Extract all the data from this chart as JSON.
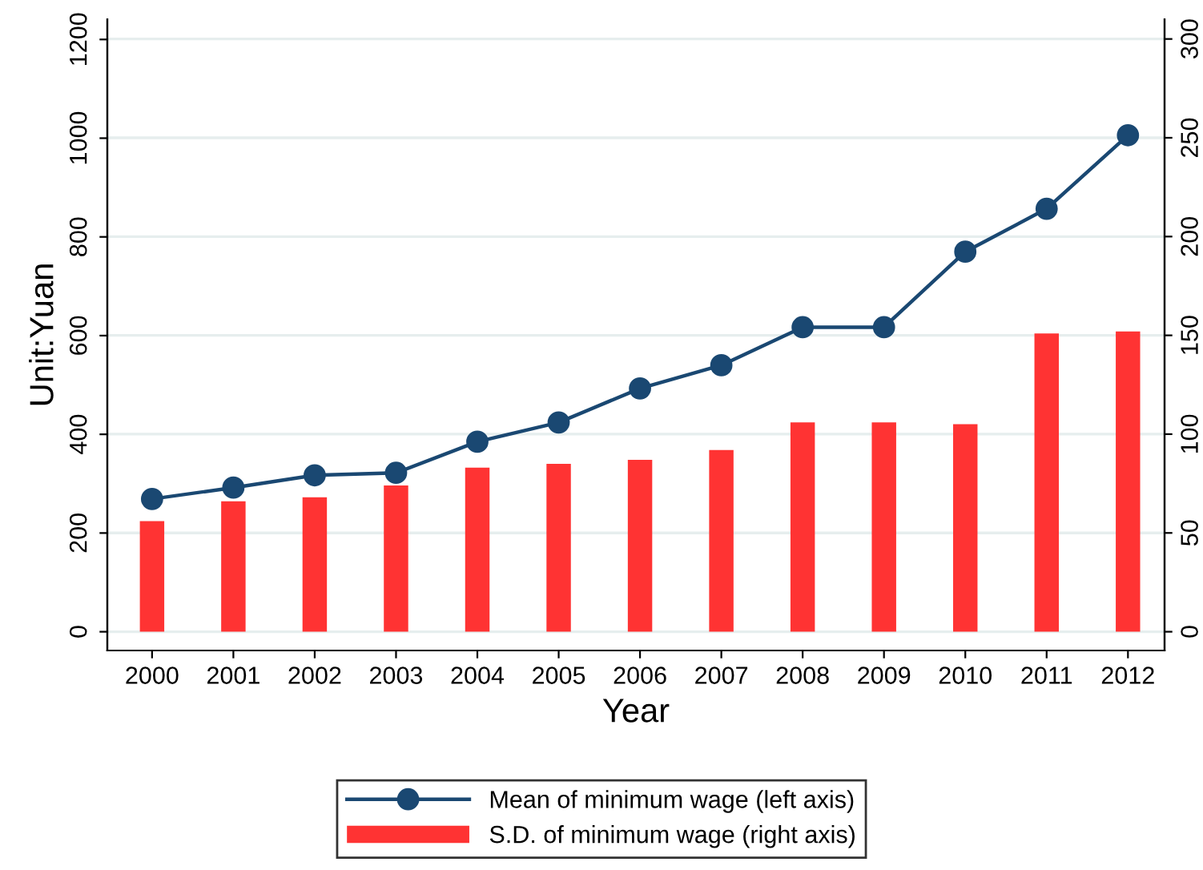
{
  "chart_data": {
    "type": "line",
    "xlabel": "Year",
    "ylabel": "Unit:Yuan",
    "categories": [
      "2000",
      "2001",
      "2002",
      "2003",
      "2004",
      "2005",
      "2006",
      "2007",
      "2008",
      "2009",
      "2010",
      "2011",
      "2012"
    ],
    "series": [
      {
        "name": "Mean of minimum wage (left axis)",
        "color": "#1a4872",
        "marker": "circle",
        "values": [
          269,
          292,
          317,
          322,
          385,
          424,
          493,
          540,
          617,
          617,
          770,
          857,
          1006
        ]
      },
      {
        "name": "S.D. of minimum wage (right axis)",
        "type": "bar",
        "axis": "y2",
        "color": "#ff3333",
        "values": [
          56,
          66,
          68,
          74,
          83,
          85,
          87,
          92,
          106,
          106,
          105,
          151,
          152
        ]
      }
    ],
    "ylim": [
      -38,
      1241
    ],
    "yticks": [
      0,
      200,
      400,
      600,
      800,
      1000,
      1200
    ],
    "y2lim": [
      -9.5,
      310
    ],
    "y2ticks": [
      0,
      50,
      100,
      150,
      200,
      250,
      300
    ],
    "grid": "y",
    "legend": "bottom"
  }
}
